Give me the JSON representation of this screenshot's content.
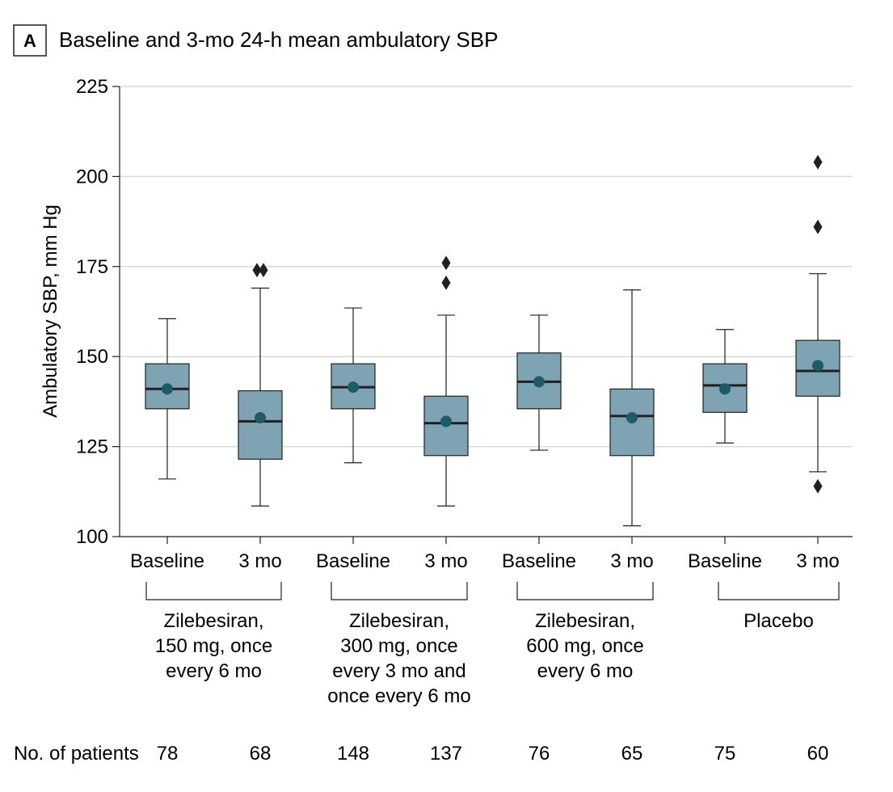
{
  "panel": {
    "letter": "A",
    "title": "Baseline and 3-mo 24-h mean ambulatory SBP"
  },
  "chart_data": {
    "type": "boxplot",
    "title": "Baseline and 3-mo 24-h mean ambulatory SBP",
    "ylabel": "Ambulatory SBP, mm Hg",
    "ylim": [
      100,
      225
    ],
    "yticks": [
      100,
      125,
      150,
      175,
      200,
      225
    ],
    "grid": true,
    "colors": {
      "box": "#7ea3b2",
      "mean": "#1e5b66",
      "line": "#231f20",
      "grid": "#d9d9d9"
    },
    "categories": [
      "Baseline",
      "3 mo",
      "Baseline",
      "3 mo",
      "Baseline",
      "3 mo",
      "Baseline",
      "3 mo"
    ],
    "boxes": [
      {
        "label": "Baseline",
        "whisker_low": 116,
        "q1": 135.5,
        "median": 141,
        "q3": 148,
        "whisker_high": 160.5,
        "mean": 141,
        "outliers": []
      },
      {
        "label": "3 mo",
        "whisker_low": 108.5,
        "q1": 121.5,
        "median": 132,
        "q3": 140.5,
        "whisker_high": 169,
        "mean": 133,
        "outliers": [
          174,
          174
        ]
      },
      {
        "label": "Baseline",
        "whisker_low": 120.5,
        "q1": 135.5,
        "median": 141.5,
        "q3": 148,
        "whisker_high": 163.5,
        "mean": 141.5,
        "outliers": []
      },
      {
        "label": "3 mo",
        "whisker_low": 108.5,
        "q1": 122.5,
        "median": 131.5,
        "q3": 139,
        "whisker_high": 161.5,
        "mean": 132,
        "outliers": [
          170.5,
          176
        ]
      },
      {
        "label": "Baseline",
        "whisker_low": 124,
        "q1": 135.5,
        "median": 143,
        "q3": 151,
        "whisker_high": 161.5,
        "mean": 143,
        "outliers": []
      },
      {
        "label": "3 mo",
        "whisker_low": 103,
        "q1": 122.5,
        "median": 133.5,
        "q3": 141,
        "whisker_high": 168.5,
        "mean": 133,
        "outliers": []
      },
      {
        "label": "Baseline",
        "whisker_low": 126,
        "q1": 134.5,
        "median": 142,
        "q3": 148,
        "whisker_high": 157.5,
        "mean": 141,
        "outliers": []
      },
      {
        "label": "3 mo",
        "whisker_low": 118,
        "q1": 139,
        "median": 146,
        "q3": 154.5,
        "whisker_high": 173,
        "mean": 147.5,
        "outliers": [
          114,
          186,
          204
        ]
      }
    ],
    "groups": [
      {
        "lines": [
          "Zilebesiran,",
          "150 mg, once",
          "every 6 mo"
        ]
      },
      {
        "lines": [
          "Zilebesiran,",
          "300 mg, once",
          "every 3 mo and",
          "once every 6 mo"
        ]
      },
      {
        "lines": [
          "Zilebesiran,",
          "600 mg, once",
          "every 6 mo"
        ]
      },
      {
        "lines": [
          "Placebo"
        ]
      }
    ],
    "patients_label": "No. of patients",
    "patients": [
      "78",
      "68",
      "148",
      "137",
      "76",
      "65",
      "75",
      "60"
    ]
  }
}
